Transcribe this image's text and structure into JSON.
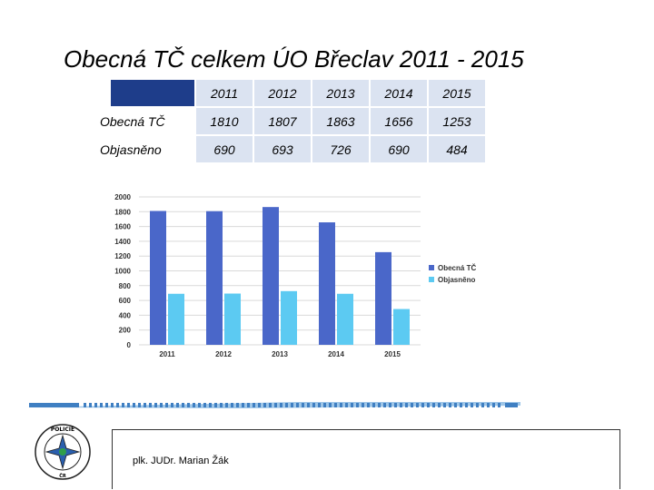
{
  "title": "Obecná TČ celkem ÚO Břeclav 2011 - 2015",
  "table": {
    "header": [
      "2011",
      "2012",
      "2013",
      "2014",
      "2015"
    ],
    "rows": [
      {
        "label": "Obecná TČ",
        "values": [
          "1810",
          "1807",
          "1863",
          "1656",
          "1253"
        ]
      },
      {
        "label": "Objasněno",
        "values": [
          "690",
          "693",
          "726",
          "690",
          "484"
        ]
      }
    ]
  },
  "chart_data": {
    "type": "bar",
    "categories": [
      "2011",
      "2012",
      "2013",
      "2014",
      "2015"
    ],
    "series": [
      {
        "name": "Obecná TČ",
        "values": [
          1810,
          1807,
          1863,
          1656,
          1253
        ],
        "color": "#4a67c9"
      },
      {
        "name": "Objasněno",
        "values": [
          690,
          693,
          726,
          690,
          484
        ],
        "color": "#5ccaf2"
      }
    ],
    "ylim": [
      0,
      2000
    ],
    "yticks": [
      0,
      200,
      400,
      600,
      800,
      1000,
      1200,
      1400,
      1600,
      1800,
      2000
    ],
    "grid": true,
    "legend": "right"
  },
  "footer": {
    "author": "plk. JUDr. Marian Žák",
    "seal_text": "POLICIE ČESKÉ REPUBLIKY"
  },
  "colors": {
    "header_dark": "#1e3d8a",
    "cell_bg": "#dbe3f1",
    "deco_blue": "#3f7fc2"
  }
}
